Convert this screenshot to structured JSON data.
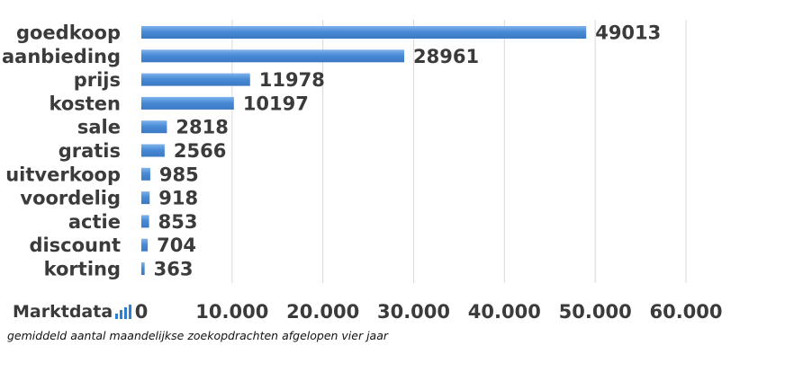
{
  "chart_data": {
    "type": "bar",
    "orientation": "horizontal",
    "categories": [
      "goedkoop",
      "aanbieding",
      "prijs",
      "kosten",
      "sale",
      "gratis",
      "uitverkoop",
      "voordelig",
      "actie",
      "discount",
      "korting"
    ],
    "values": [
      49013,
      28961,
      11978,
      10197,
      2818,
      2566,
      985,
      918,
      853,
      704,
      363
    ],
    "value_labels": [
      "49013",
      "28961",
      "11978",
      "10197",
      "2818",
      "2566",
      "985",
      "918",
      "853",
      "704",
      "363"
    ],
    "xlim": [
      0,
      60000
    ],
    "xticks": [
      0,
      10000,
      20000,
      30000,
      40000,
      50000,
      60000
    ],
    "xtick_labels": [
      "0",
      "10.000",
      "20.000",
      "30.000",
      "40.000",
      "50.000",
      "60.000"
    ],
    "grid": "vertical",
    "bar_color": "#4a8bd6",
    "bar_color_light": "#79aee6",
    "title": "",
    "xlabel": "",
    "ylabel": ""
  },
  "logo": {
    "text": "Marktdata",
    "color": "#2f7fd1",
    "bar_levels": [
      0.35,
      0.6,
      0.8,
      1.0
    ]
  },
  "caption": "gemiddeld aantal maandelijkse zoekopdrachten afgelopen vier jaar"
}
